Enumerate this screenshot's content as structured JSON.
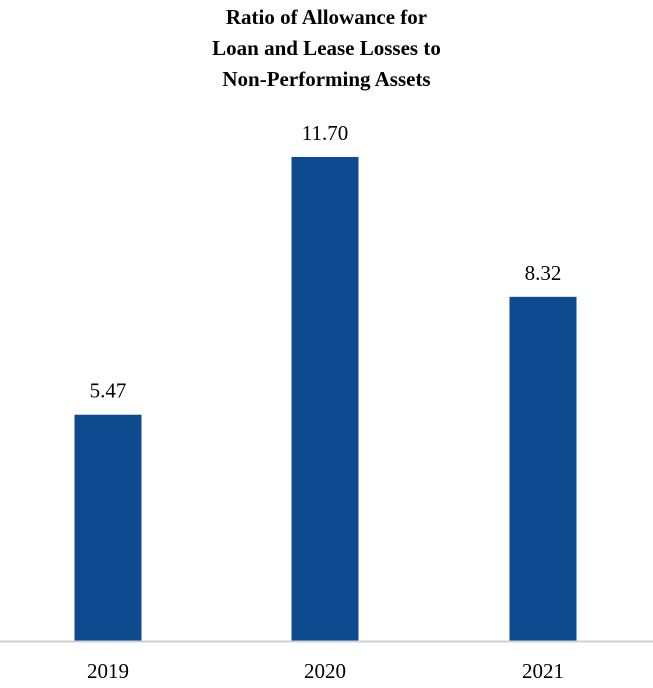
{
  "chart_data": {
    "type": "bar",
    "title_lines": [
      "Ratio of Allowance for",
      "Loan and Lease Losses to",
      "Non-Performing Assets"
    ],
    "categories": [
      "2019",
      "2020",
      "2021"
    ],
    "values": [
      5.47,
      11.7,
      8.32
    ],
    "data_labels": [
      "5.47",
      "11.70",
      "8.32"
    ],
    "xlabel": "",
    "ylabel": "",
    "ylim": [
      0,
      11.7
    ],
    "grid": false,
    "legend": "none",
    "bar_color": "#0e4a8f",
    "axis_color": "#d0d0d0"
  }
}
